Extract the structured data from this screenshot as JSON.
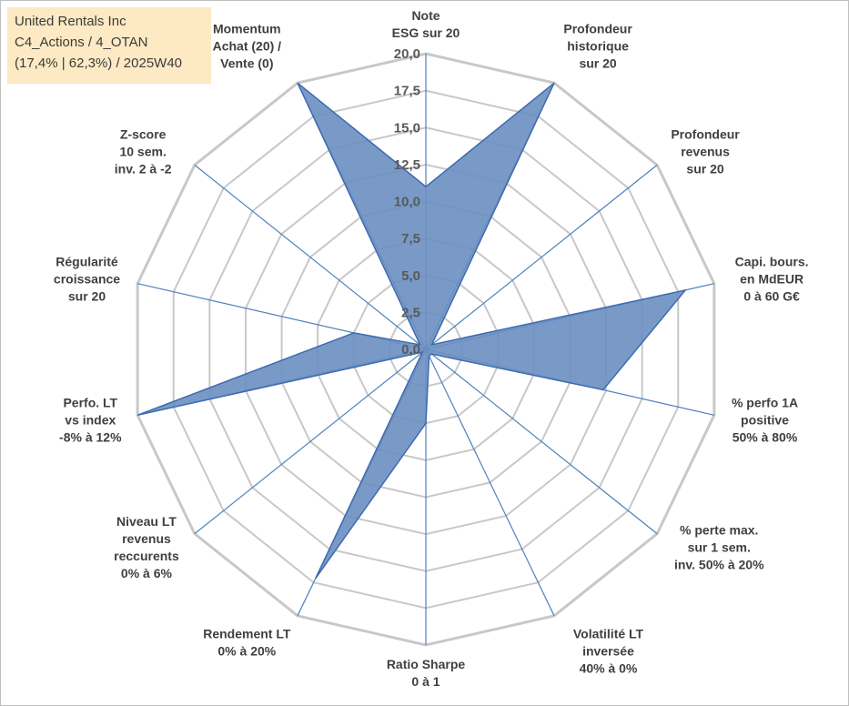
{
  "info": {
    "line1": "United Rentals Inc",
    "line2": "C4_Actions / 4_OTAN",
    "line3": "(17,4% | 62,3%) / 2025W40"
  },
  "colors": {
    "series_fill": "#6a8fc1",
    "series_stroke": "#3f6ab0",
    "grid": "#c8c8c8",
    "spoke": "#4f81bd",
    "info_bg": "#fde9c3"
  },
  "chart_data": {
    "type": "radar",
    "title": "",
    "rmin": 0,
    "rmax": 20,
    "ticks": [
      "0,0",
      "2,5",
      "5,0",
      "7,5",
      "10,0",
      "12,5",
      "15,0",
      "17,5",
      "20,0"
    ],
    "axes": [
      {
        "lines": [
          "Note",
          "ESG sur 20"
        ],
        "value": 11.0
      },
      {
        "lines": [
          "Profondeur",
          "historique",
          "sur 20"
        ],
        "value": 20.0
      },
      {
        "lines": [
          "Profondeur",
          "revenus",
          "sur 20"
        ],
        "value": 0.5
      },
      {
        "lines": [
          "Capi. bours.",
          "en MdEUR",
          "0 à 60 G€"
        ],
        "value": 18.0
      },
      {
        "lines": [
          "% perfo 1A",
          "positive",
          "50% à 80%"
        ],
        "value": 12.3
      },
      {
        "lines": [
          "% perte max.",
          "sur 1 sem.",
          "inv. 50% à 20%"
        ],
        "value": 0.5
      },
      {
        "lines": [
          "Volatilité LT",
          "inversée",
          "40% à 0%"
        ],
        "value": 0.5
      },
      {
        "lines": [
          "Ratio Sharpe",
          "0 à 1"
        ],
        "value": 5.0
      },
      {
        "lines": [
          "Rendement LT",
          "0% à 20%"
        ],
        "value": 17.2
      },
      {
        "lines": [
          "Niveau LT",
          "revenus",
          "reccurents",
          "0% à 6%"
        ],
        "value": 0.3
      },
      {
        "lines": [
          "Perfo. LT",
          "vs index",
          "-8% à 12%"
        ],
        "value": 20.0
      },
      {
        "lines": [
          "Régularité",
          "croissance",
          "sur 20"
        ],
        "value": 5.0
      },
      {
        "lines": [
          "Z-score",
          "10 sem.",
          "inv. 2 à -2"
        ],
        "value": 0.5
      },
      {
        "lines": [
          "Momentum",
          "Achat (20) /",
          "Vente (0)"
        ],
        "value": 20.0
      }
    ]
  }
}
